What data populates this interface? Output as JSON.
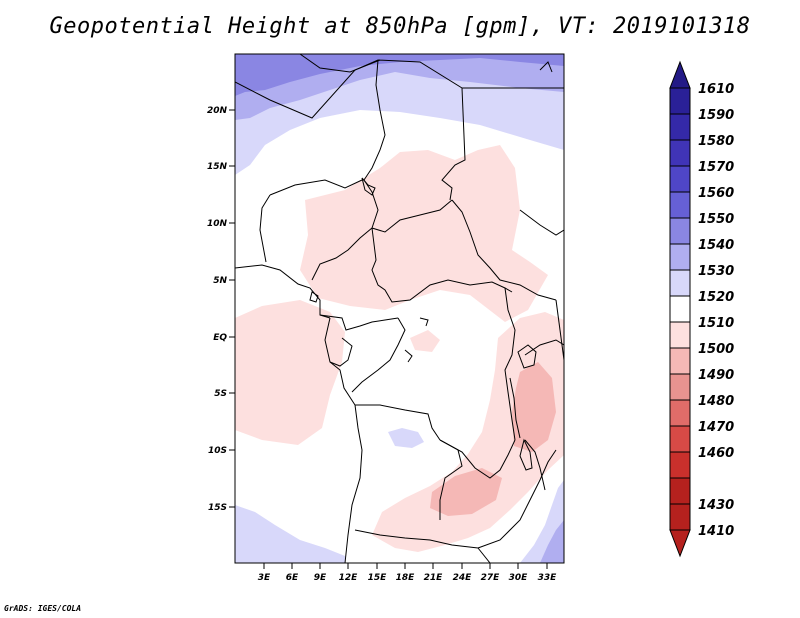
{
  "title": "Geopotential Height at 850hPa [gpm], VT: 2019101318",
  "credit": "GrADS: IGES/COLA",
  "map": {
    "lat_labels": [
      "20N",
      "15N",
      "10N",
      "5N",
      "EQ",
      "5S",
      "10S",
      "15S"
    ],
    "lon_labels": [
      "3E",
      "6E",
      "9E",
      "12E",
      "15E",
      "18E",
      "21E",
      "24E",
      "27E",
      "30E",
      "33E"
    ]
  },
  "colorbar": {
    "levels": [
      "1610",
      "1590",
      "1580",
      "1570",
      "1560",
      "1550",
      "1540",
      "1530",
      "1520",
      "1510",
      "1500",
      "1490",
      "1480",
      "1470",
      "1460",
      "1430",
      "1410"
    ],
    "colors": {
      "top": "#231a86",
      "c1590": "#2a2097",
      "c1580": "#3429a8",
      "c1570": "#4034b7",
      "c1560": "#4f46c7",
      "c1550": "#6660d6",
      "c1540": "#8a86e3",
      "c1530": "#b0aef0",
      "c1520": "#d8d8fa",
      "c1510": "#ffffff",
      "c1500": "#fde0df",
      "c1490": "#f5b8b6",
      "c1480": "#e89390",
      "c1470": "#e06c69",
      "c1460": "#d74a46",
      "c1430": "#c9302c",
      "c1410": "#b5211e"
    }
  }
}
